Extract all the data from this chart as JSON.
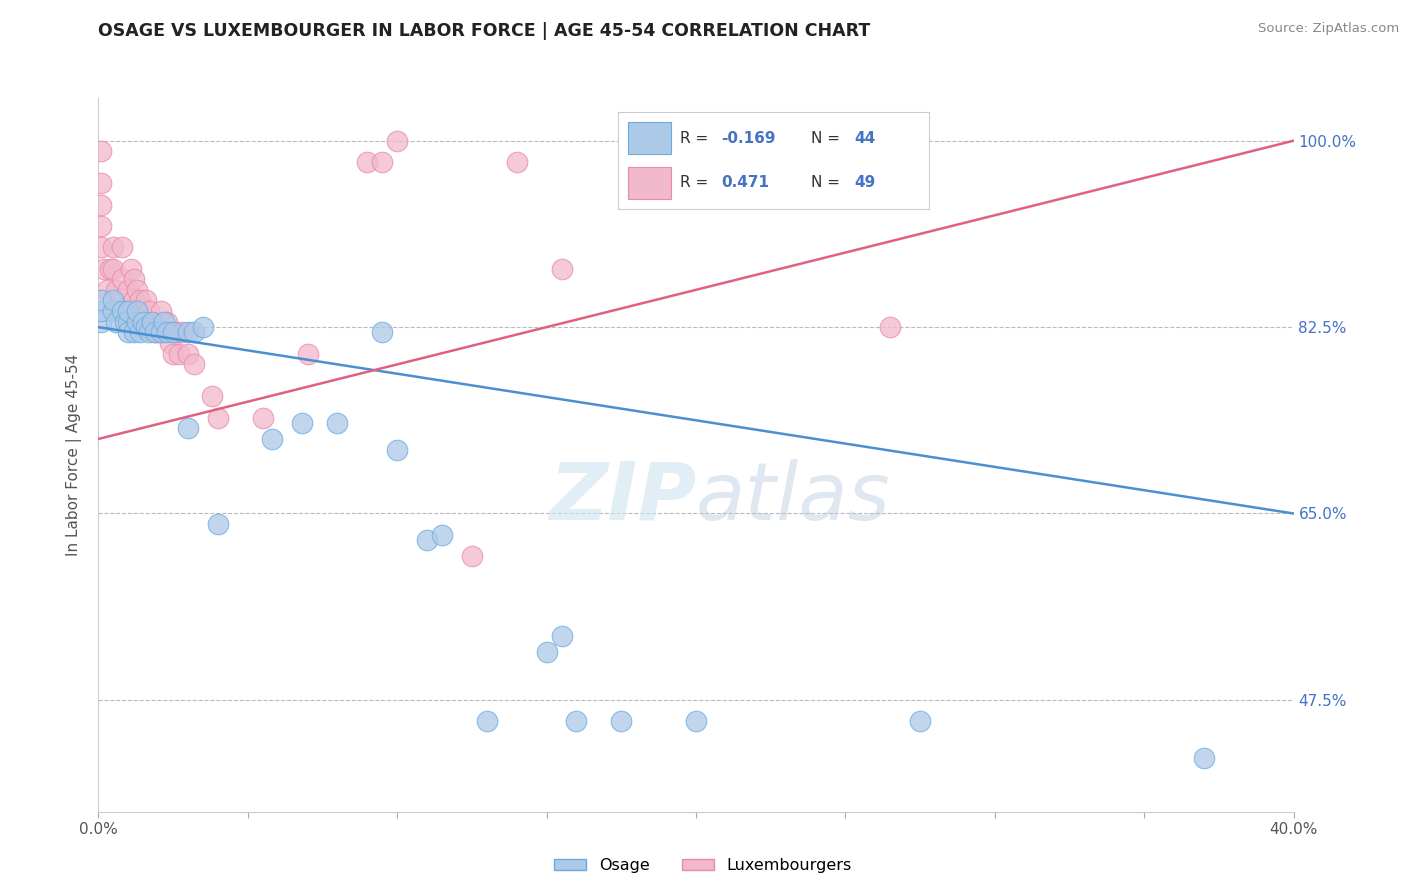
{
  "title": "OSAGE VS LUXEMBOURGER IN LABOR FORCE | AGE 45-54 CORRELATION CHART",
  "source_text": "Source: ZipAtlas.com",
  "ylabel": "In Labor Force | Age 45-54",
  "xlim": [
    0.0,
    0.4
  ],
  "ylim": [
    0.37,
    1.04
  ],
  "xtick_vals": [
    0.0,
    0.05,
    0.1,
    0.15,
    0.2,
    0.25,
    0.3,
    0.35,
    0.4
  ],
  "xticklabels": [
    "0.0%",
    "",
    "",
    "",
    "",
    "",
    "",
    "",
    "40.0%"
  ],
  "ytick_grid": [
    0.475,
    0.65,
    0.825,
    1.0
  ],
  "ytick_labels_right": [
    "47.5%",
    "65.0%",
    "82.5%",
    "100.0%"
  ],
  "osage_color": "#adc9e8",
  "luxembourger_color": "#f2b8cc",
  "osage_edge_color": "#6aabe0",
  "luxembourger_edge_color": "#e88aaa",
  "osage_line_color": "#4a90d0",
  "luxembourger_line_color": "#e06080",
  "R_osage": "-0.169",
  "N_osage": "44",
  "R_luxembourger": "0.471",
  "N_luxembourger": "49",
  "watermark": "ZIPatlas",
  "watermark_color": "#ccdff0",
  "osage_x": [
    0.001,
    0.001,
    0.001,
    0.005,
    0.005,
    0.006,
    0.008,
    0.009,
    0.01,
    0.01,
    0.01,
    0.012,
    0.013,
    0.013,
    0.014,
    0.015,
    0.016,
    0.017,
    0.018,
    0.019,
    0.021,
    0.022,
    0.023,
    0.025,
    0.03,
    0.03,
    0.032,
    0.035,
    0.04,
    0.058,
    0.068,
    0.08,
    0.095,
    0.1,
    0.11,
    0.115,
    0.13,
    0.15,
    0.155,
    0.16,
    0.175,
    0.2,
    0.275,
    0.37
  ],
  "osage_y": [
    0.83,
    0.84,
    0.85,
    0.84,
    0.85,
    0.83,
    0.84,
    0.83,
    0.83,
    0.82,
    0.84,
    0.82,
    0.83,
    0.84,
    0.82,
    0.83,
    0.825,
    0.82,
    0.83,
    0.82,
    0.82,
    0.83,
    0.82,
    0.82,
    0.82,
    0.73,
    0.82,
    0.825,
    0.64,
    0.72,
    0.735,
    0.735,
    0.82,
    0.71,
    0.625,
    0.63,
    0.455,
    0.52,
    0.535,
    0.455,
    0.455,
    0.455,
    0.455,
    0.42
  ],
  "luxembourger_x": [
    0.001,
    0.001,
    0.001,
    0.001,
    0.001,
    0.002,
    0.003,
    0.004,
    0.005,
    0.005,
    0.006,
    0.007,
    0.008,
    0.008,
    0.009,
    0.01,
    0.011,
    0.012,
    0.012,
    0.013,
    0.013,
    0.014,
    0.015,
    0.016,
    0.017,
    0.018,
    0.019,
    0.02,
    0.021,
    0.022,
    0.023,
    0.024,
    0.025,
    0.026,
    0.027,
    0.028,
    0.03,
    0.032,
    0.038,
    0.04,
    0.055,
    0.07,
    0.09,
    0.095,
    0.1,
    0.125,
    0.14,
    0.155,
    0.265
  ],
  "luxembourger_y": [
    0.9,
    0.92,
    0.94,
    0.96,
    0.99,
    0.88,
    0.86,
    0.88,
    0.88,
    0.9,
    0.86,
    0.84,
    0.87,
    0.9,
    0.84,
    0.86,
    0.88,
    0.85,
    0.87,
    0.83,
    0.86,
    0.85,
    0.83,
    0.85,
    0.84,
    0.83,
    0.82,
    0.82,
    0.84,
    0.82,
    0.83,
    0.81,
    0.8,
    0.82,
    0.8,
    0.82,
    0.8,
    0.79,
    0.76,
    0.74,
    0.74,
    0.8,
    0.98,
    0.98,
    1.0,
    0.61,
    0.98,
    0.88,
    0.825
  ],
  "background_color": "#ffffff"
}
